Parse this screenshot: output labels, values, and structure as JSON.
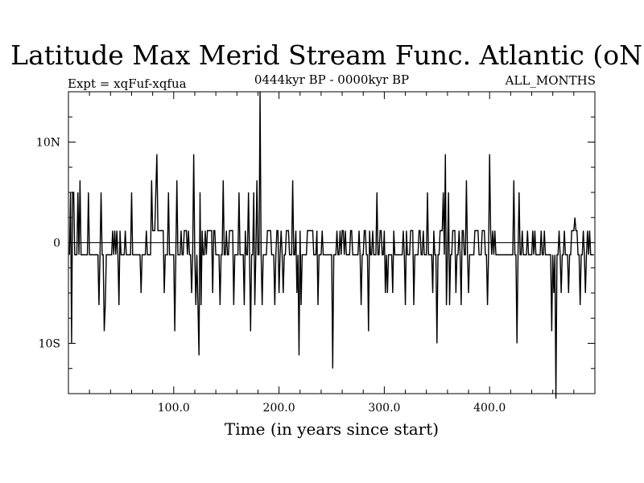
{
  "chart_data": {
    "type": "line",
    "title": "Latitude Max Merid Stream Func. Atlantic (oN)",
    "subtitle_left": "Expt = xqFuf-xqfua",
    "subtitle_center": "0444kyr BP - 0000kyr BP",
    "subtitle_right": "ALL_MONTHS",
    "xlabel": "Time (in years since start)",
    "ylabel": "",
    "xlim": [
      0,
      500
    ],
    "ylim": [
      -15,
      15
    ],
    "x_ticks": [
      {
        "value": 100,
        "label": "100.0"
      },
      {
        "value": 200,
        "label": "200.0"
      },
      {
        "value": 300,
        "label": "300.0"
      },
      {
        "value": 400,
        "label": "400.0"
      }
    ],
    "y_ticks": [
      {
        "value": 10,
        "label": "10N"
      },
      {
        "value": 0,
        "label": "0"
      },
      {
        "value": -10,
        "label": "10S"
      }
    ],
    "zero_line": true,
    "series": [
      {
        "color": "#000000",
        "x": [
          1,
          2,
          3,
          4,
          5,
          6,
          7,
          8,
          9,
          10,
          11,
          12,
          13,
          14,
          15,
          16,
          17,
          18,
          19,
          20,
          21,
          22,
          23,
          24,
          25,
          26,
          27,
          28,
          29,
          30,
          31,
          32,
          33,
          34,
          35,
          36,
          37,
          38,
          39,
          40,
          41,
          42,
          43,
          44,
          45,
          46,
          47,
          48,
          49,
          50,
          51,
          52,
          53,
          54,
          55,
          56,
          57,
          58,
          59,
          60,
          61,
          62,
          63,
          64,
          65,
          66,
          67,
          68,
          69,
          70,
          71,
          72,
          73,
          74,
          75,
          76,
          77,
          78,
          79,
          80,
          81,
          82,
          83,
          84,
          85,
          86,
          87,
          88,
          89,
          90,
          91,
          92,
          93,
          94,
          95,
          96,
          97,
          98,
          99,
          100,
          101,
          102,
          103,
          104,
          105,
          106,
          107,
          108,
          109,
          110,
          111,
          112,
          113,
          114,
          115,
          116,
          117,
          118,
          119,
          120,
          121,
          122,
          123,
          124,
          125,
          126,
          127,
          128,
          129,
          130,
          131,
          132,
          133,
          134,
          135,
          136,
          137,
          138,
          139,
          140,
          141,
          142,
          143,
          144,
          145,
          146,
          147,
          148,
          149,
          150,
          151,
          152,
          153,
          154,
          155,
          156,
          157,
          158,
          159,
          160,
          161,
          162,
          163,
          164,
          165,
          166,
          167,
          168,
          169,
          170,
          171,
          172,
          173,
          174,
          175,
          176,
          177,
          178,
          179,
          180,
          181,
          182,
          183,
          184,
          185,
          186,
          187,
          188,
          189,
          190,
          191,
          192,
          193,
          194,
          195,
          196,
          197,
          198,
          199,
          200,
          201,
          202,
          203,
          204,
          205,
          206,
          207,
          208,
          209,
          210,
          211,
          212,
          213,
          214,
          215,
          216,
          217,
          218,
          219,
          220,
          221,
          222,
          223,
          224,
          225,
          226,
          227,
          228,
          229,
          230,
          231,
          232,
          233,
          234,
          235,
          236,
          237,
          238,
          239,
          240,
          241,
          242,
          243,
          244,
          245,
          246,
          247,
          248,
          249,
          250,
          251,
          252,
          253,
          254,
          255,
          256,
          257,
          258,
          259,
          260,
          261,
          262,
          263,
          264,
          265,
          266,
          267,
          268,
          269,
          270,
          271,
          272,
          273,
          274,
          275,
          276,
          277,
          278,
          279,
          280,
          281,
          282,
          283,
          284,
          285,
          286,
          287,
          288,
          289,
          290,
          291,
          292,
          293,
          294,
          295,
          296,
          297,
          298,
          299,
          300,
          301,
          302,
          303,
          304,
          305,
          306,
          307,
          308,
          309,
          310,
          311,
          312,
          313,
          314,
          315,
          316,
          317,
          318,
          319,
          320,
          321,
          322,
          323,
          324,
          325,
          326,
          327,
          328,
          329,
          330,
          331,
          332,
          333,
          334,
          335,
          336,
          337,
          338,
          339,
          340,
          341,
          342,
          343,
          344,
          345,
          346,
          347,
          348,
          349,
          350,
          351,
          352,
          353,
          354,
          355,
          356,
          357,
          358,
          359,
          360,
          361,
          362,
          363,
          364,
          365,
          366,
          367,
          368,
          369,
          370,
          371,
          372,
          373,
          374,
          375,
          376,
          377,
          378,
          379,
          380,
          381,
          382,
          383,
          384,
          385,
          386,
          387,
          388,
          389,
          390,
          391,
          392,
          393,
          394,
          395,
          396,
          397,
          398,
          399,
          400,
          401,
          402,
          403,
          404,
          405,
          406,
          407,
          408,
          409,
          410,
          411,
          412,
          413,
          414,
          415,
          416,
          417,
          418,
          419,
          420,
          421,
          422,
          423,
          424,
          425,
          426,
          427,
          428,
          429,
          430,
          431,
          432,
          433,
          434,
          435,
          436,
          437,
          438,
          439,
          440,
          441,
          442,
          443,
          444,
          445,
          446,
          447,
          448,
          449,
          450,
          451,
          452,
          453,
          454,
          455,
          456,
          457,
          458,
          459,
          460,
          461,
          462,
          463,
          464,
          465,
          466,
          467,
          468,
          469,
          470,
          471,
          472,
          473,
          474,
          475,
          476,
          477,
          478,
          479,
          480,
          481,
          482,
          483,
          484,
          485,
          486,
          487,
          488,
          489,
          490,
          491,
          492,
          493,
          494,
          495,
          496,
          497,
          498,
          499
        ],
        "y": [
          -1.2,
          5,
          -10,
          5,
          5,
          -1.2,
          -1.2,
          -1.2,
          5,
          -1.2,
          6.2,
          -1.2,
          -1.2,
          -1.2,
          -1.2,
          -1.2,
          -1.2,
          -1.2,
          5,
          -1.2,
          -1.2,
          -1.2,
          -1.2,
          -1.2,
          -1.2,
          -1.2,
          -1.2,
          -1.2,
          -6.2,
          -1.2,
          5,
          -1.2,
          -1.2,
          -8.8,
          -6.2,
          -1.2,
          -1.2,
          -1.2,
          -1.2,
          -1.2,
          -1.2,
          1.2,
          -1.2,
          1.2,
          -1.2,
          1.2,
          -1.2,
          -6.2,
          1.2,
          -1.2,
          -1.2,
          -1.2,
          -1.2,
          1.2,
          -1.2,
          -1.2,
          -1.2,
          -1.2,
          -1.2,
          5,
          -1.2,
          -1.2,
          -1.2,
          -1.2,
          -1.2,
          -1.2,
          -1.2,
          -1.2,
          -5,
          -1.2,
          -1.2,
          -1.2,
          -1.2,
          1.2,
          -1.2,
          -1.2,
          -1.2,
          -1.2,
          6.2,
          1.2,
          1.2,
          1.2,
          5,
          8.8,
          1.2,
          1.2,
          1.2,
          1.2,
          1.2,
          1.2,
          -5,
          -1.2,
          -1.2,
          -1.2,
          5,
          -1.2,
          -1.2,
          -1.2,
          -1.2,
          -1.2,
          -8.8,
          -1.2,
          6.2,
          -1.2,
          -1.2,
          -1.2,
          1.2,
          -1.2,
          -1.2,
          1.2,
          1.2,
          1.2,
          -1.2,
          1.2,
          -1.2,
          -1.2,
          -5,
          -1.2,
          8.8,
          -1.2,
          -6.2,
          -1.2,
          -6.2,
          -11.2,
          5,
          -6.2,
          1.2,
          -1.2,
          -1.2,
          1.2,
          -1.2,
          1.2,
          1.2,
          1.2,
          1.2,
          1.2,
          -5,
          1.2,
          1.2,
          -1.2,
          -1.2,
          -1.2,
          -1.2,
          -6.2,
          -1.2,
          -1.2,
          6.2,
          -1.2,
          -1.2,
          1.2,
          -1.2,
          -1.2,
          1.2,
          1.2,
          1.2,
          1.2,
          -6.2,
          -1.2,
          -1.2,
          -1.2,
          -1.2,
          5,
          -1.2,
          -1.2,
          -1.2,
          -1.2,
          -6.2,
          1.2,
          -1.2,
          -1.2,
          5,
          -1.2,
          -8.8,
          -1.2,
          -1.2,
          5,
          -6.2,
          -1.2,
          6.2,
          -1.2,
          -1.2,
          15,
          -1.2,
          -6.2,
          -1.2,
          -1.2,
          -1.2,
          -1.2,
          1.2,
          1.2,
          1.2,
          1.2,
          -1.2,
          -1.2,
          -1.2,
          -6.2,
          -1.2,
          1.2,
          1.2,
          -5,
          -1.2,
          1.2,
          -1.2,
          -5,
          -1.2,
          -1.2,
          1.2,
          1.2,
          1.2,
          -1.2,
          -1.2,
          -1.2,
          6.2,
          -1.2,
          -1.2,
          1.2,
          -5,
          -1.2,
          -11.2,
          1.2,
          -6.2,
          -1.2,
          -1.2,
          -1.2,
          -1.2,
          -1.2,
          1.2,
          1.2,
          1.2,
          1.2,
          1.2,
          1.2,
          -1.2,
          -1.2,
          -1.2,
          1.2,
          -6.2,
          -1.2,
          -1.2,
          -1.2,
          1.2,
          -1.2,
          -1.2,
          -1.2,
          -1.2,
          -1.2,
          -1.2,
          -1.2,
          -1.2,
          -1.2,
          -12.5,
          -1.2,
          -1.2,
          -1.2,
          1.2,
          -1.2,
          -1.2,
          1.2,
          -1.2,
          1.2,
          1.2,
          -1.2,
          1.2,
          -1.2,
          -1.2,
          -1.2,
          -1.2,
          1.2,
          1.2,
          -1.2,
          -1.2,
          -1.2,
          -1.2,
          -1.2,
          -1.2,
          1.2,
          -1.2,
          -6.2,
          -1.2,
          -1.2,
          1.2,
          1.2,
          -1.2,
          -1.2,
          -8.8,
          1.2,
          -1.2,
          -1.2,
          1.2,
          -1.2,
          -1.2,
          -1.2,
          5,
          -1.2,
          -1.2,
          1.2,
          1.2,
          -1.2,
          -1.2,
          1.2,
          -5,
          -1.2,
          -5,
          -1.2,
          -1.2,
          -1.2,
          -1.2,
          -5,
          1.2,
          -1.2,
          -1.2,
          -1.2,
          -1.2,
          -1.2,
          -1.2,
          -1.2,
          -1.2,
          1.2,
          -1.2,
          -6.2,
          1.2,
          -1.2,
          -1.2,
          -1.2,
          1.2,
          1.2,
          1.2,
          -6.2,
          -1.2,
          -1.2,
          -1.2,
          -1.2,
          1.2,
          1.2,
          -1.2,
          -1.2,
          1.2,
          -1.2,
          -1.2,
          -1.2,
          5,
          -1.2,
          -1.2,
          -1.2,
          -1.2,
          -5,
          1.2,
          -1.2,
          -1.2,
          -10,
          -1.2,
          -1.2,
          1.2,
          1.2,
          1.2,
          5,
          -1.2,
          8.8,
          -6.2,
          -1.2,
          5,
          -6.2,
          -1.2,
          -1.2,
          1.2,
          1.2,
          1.2,
          -5,
          -1.2,
          -1.2,
          1.2,
          -1.2,
          -6.2,
          1.2,
          1.2,
          -1.2,
          -1.2,
          6.2,
          -1.2,
          -5,
          -1.2,
          -1.2,
          -1.2,
          -1.2,
          -1.2,
          1.2,
          1.2,
          1.2,
          1.2,
          -1.2,
          -1.2,
          -1.2,
          1.2,
          1.2,
          1.2,
          -1.2,
          -1.2,
          -6.2,
          -1.2,
          8.8,
          1.2,
          -1.2,
          1.2,
          -1.2,
          1.2,
          -1.2,
          -1.2,
          -1.2,
          -1.2,
          -1.2,
          -1.2,
          -1.2,
          -1.2,
          -1.2,
          -1.2,
          -1.2,
          -1.2,
          -1.2,
          -1.2,
          -1.2,
          -1.2,
          -1.2,
          6.2,
          -1.2,
          -1.2,
          -10,
          -1.2,
          5,
          -1.2,
          -1.2,
          1.2,
          -1.2,
          -1.2,
          -1.2,
          -1.2,
          1.2,
          -1.2,
          -1.2,
          -1.2,
          -1.2,
          1.2,
          -1.2,
          1.2,
          -1.2,
          -1.2,
          -1.2,
          -1.2,
          -1.2,
          1.2,
          -1.2,
          -1.2,
          1.2,
          -1.2,
          -1.2,
          -1.2,
          -1.2,
          -1.2,
          -1.2,
          -8.8,
          -1.2,
          -5,
          -1.2,
          -15.5,
          -1.2,
          -1.2,
          1.2,
          -1.2,
          -5,
          -1.2,
          -1.2,
          1.2,
          -1.2,
          -1.2,
          -1.2,
          -5,
          -1.2,
          -1.2,
          1.2,
          1.2,
          1.2,
          2.5,
          1.2,
          1.2,
          -1.2,
          -1.2,
          -6.2,
          -1.2,
          -1.2,
          1.2,
          -1.2,
          -5,
          -1.2,
          1.2,
          -1.2,
          1.2,
          -1.2,
          -1.2,
          -1.2,
          -1.2
        ]
      }
    ]
  }
}
